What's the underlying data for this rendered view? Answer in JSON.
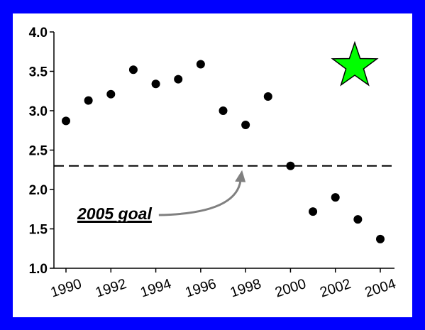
{
  "colors": {
    "border": "#0000FF",
    "background": "#FFFFFF",
    "points": "#000000",
    "goal_line": "#000000",
    "arrow": "#808080",
    "star_fill": "#00FF00",
    "star_stroke": "#000000"
  },
  "icons": {
    "star": "star-icon"
  },
  "chart_data": {
    "type": "scatter",
    "x": [
      1990,
      1991,
      1992,
      1993,
      1994,
      1995,
      1996,
      1997,
      1998,
      1999,
      2000,
      2001,
      2002,
      2003,
      2004
    ],
    "y": [
      2.87,
      3.13,
      3.21,
      3.52,
      3.34,
      3.4,
      3.59,
      3.0,
      2.82,
      3.18,
      2.3,
      1.72,
      1.9,
      1.62,
      1.37
    ],
    "xlim": [
      1990,
      2004
    ],
    "ylim": [
      1.0,
      4.0
    ],
    "x_ticks": [
      1990,
      1992,
      1994,
      1996,
      1998,
      2000,
      2002,
      2004
    ],
    "x_tick_labels": [
      "1990",
      "1992",
      "1994",
      "1996",
      "1998",
      "2000",
      "2002",
      "2004"
    ],
    "y_ticks": [
      1.0,
      1.5,
      2.0,
      2.5,
      3.0,
      3.5,
      4.0
    ],
    "y_tick_labels": [
      "1.0",
      "1.5",
      "2.0",
      "2.5",
      "3.0",
      "3.5",
      "4.0"
    ],
    "grid": false,
    "reference_line": {
      "y": 2.3,
      "style": "dashed"
    },
    "annotation": {
      "text": "2005 goal",
      "points_to_year": 1998
    },
    "star_marker": "top-right"
  }
}
